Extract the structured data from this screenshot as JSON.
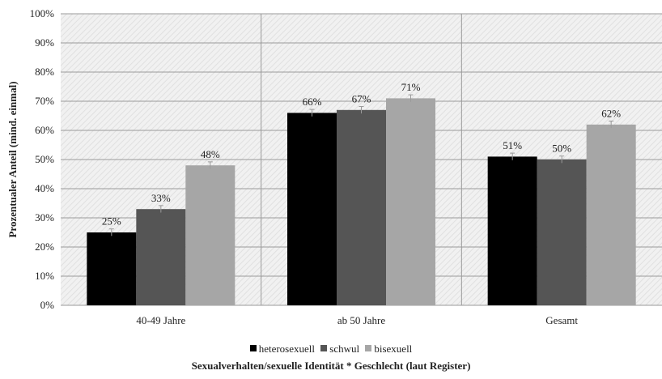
{
  "chart_data": {
    "type": "bar",
    "categories": [
      "40-49 Jahre",
      "ab 50 Jahre",
      "Gesamt"
    ],
    "series": [
      {
        "name": "heterosexuell",
        "values": [
          25,
          66,
          51
        ],
        "labels": [
          "25%",
          "66%",
          "51%"
        ],
        "color": "#000000"
      },
      {
        "name": "schwul",
        "values": [
          33,
          67,
          50
        ],
        "labels": [
          "33%",
          "67%",
          "50%"
        ],
        "color": "#555555"
      },
      {
        "name": "bisexuell",
        "values": [
          48,
          71,
          62
        ],
        "labels": [
          "48%",
          "71%",
          "62%"
        ],
        "color": "#a6a6a6"
      }
    ],
    "error_bar": 1.2,
    "ylabel": "Prozentualer Anteil (mind. einmal)",
    "xlabel": "Sexualverhalten/sexuelle Identität * Geschlecht (laut Register)",
    "ylim": [
      0,
      100
    ],
    "yticks": [
      "0%",
      "10%",
      "20%",
      "30%",
      "40%",
      "50%",
      "60%",
      "70%",
      "80%",
      "90%",
      "100%"
    ],
    "grid": true,
    "legend_position": "bottom"
  }
}
